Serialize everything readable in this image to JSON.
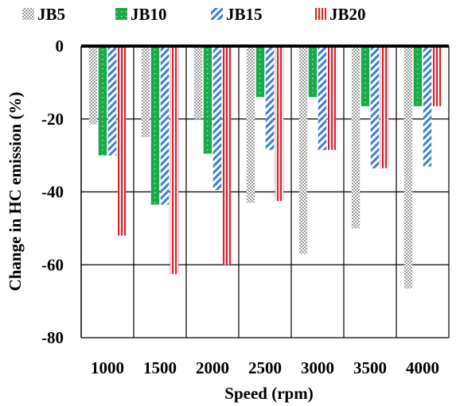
{
  "chart_data": {
    "type": "bar",
    "xlabel": "Speed (rpm)",
    "ylabel": "Change in HC emission (%)",
    "categories": [
      "1000",
      "1500",
      "2000",
      "2500",
      "3000",
      "3500",
      "4000"
    ],
    "ylim": [
      -80,
      0
    ],
    "yticks": [
      0,
      -20,
      -40,
      -60,
      -80
    ],
    "grid": true,
    "legend_position": "top",
    "series": [
      {
        "name": "JB5",
        "color": "#a0a0a0",
        "pattern": "checker",
        "values": [
          -21.5,
          -25,
          -20,
          -43,
          -57,
          -50,
          -66.5
        ]
      },
      {
        "name": "JB10",
        "color": "#1aaa4a",
        "pattern": "dotted-solid",
        "values": [
          -30,
          -43.5,
          -29.5,
          -14,
          -14,
          -16.5,
          -16.5
        ]
      },
      {
        "name": "JB15",
        "color": "#3a7fd5",
        "pattern": "diagonal-stripes",
        "values": [
          -30,
          -43.5,
          -39.5,
          -28.5,
          -28.5,
          -33.5,
          -33
        ]
      },
      {
        "name": "JB20",
        "color": "#e0202a",
        "pattern": "vertical-stripes",
        "values": [
          -52,
          -62.5,
          -60,
          -42.5,
          -28.5,
          -33.5,
          -16.5
        ]
      }
    ]
  }
}
